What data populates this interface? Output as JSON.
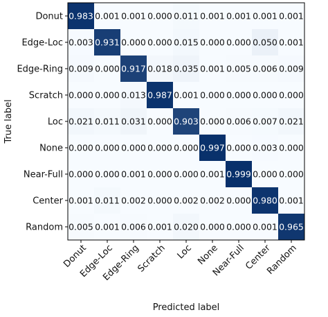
{
  "chart_data": {
    "type": "heatmap",
    "title": "",
    "xlabel": "Predicted label",
    "ylabel": "True label",
    "x_categories": [
      "Donut",
      "Edge-Loc",
      "Edge-Ring",
      "Scratch",
      "Loc",
      "None",
      "Near-Full",
      "Center",
      "Random"
    ],
    "y_categories": [
      "Donut",
      "Edge-Loc",
      "Edge-Ring",
      "Scratch",
      "Loc",
      "None",
      "Near-Full",
      "Center",
      "Random"
    ],
    "matrix": [
      [
        0.983,
        0.001,
        0.001,
        0.0,
        0.011,
        0.001,
        0.001,
        0.001,
        0.001
      ],
      [
        0.003,
        0.931,
        0.0,
        0.0,
        0.015,
        0.0,
        0.0,
        0.05,
        0.001
      ],
      [
        0.009,
        0.0,
        0.917,
        0.018,
        0.035,
        0.001,
        0.005,
        0.006,
        0.009
      ],
      [
        0.0,
        0.0,
        0.013,
        0.987,
        0.001,
        0.0,
        0.0,
        0.0,
        0.0
      ],
      [
        0.021,
        0.011,
        0.031,
        0.0,
        0.903,
        0.0,
        0.006,
        0.007,
        0.021
      ],
      [
        0.0,
        0.0,
        0.0,
        0.0,
        0.0,
        0.997,
        0.0,
        0.003,
        0.0
      ],
      [
        0.0,
        0.0,
        0.001,
        0.0,
        0.0,
        0.001,
        0.999,
        0.0,
        0.0
      ],
      [
        0.001,
        0.011,
        0.002,
        0.0,
        0.002,
        0.002,
        0.0,
        0.98,
        0.001
      ],
      [
        0.005,
        0.001,
        0.006,
        0.001,
        0.02,
        0.0,
        0.0,
        0.001,
        0.965
      ]
    ],
    "value_format": "3 decimals",
    "colormap": {
      "low": "#f7fbff",
      "high": "#08306b"
    },
    "value_range": [
      0,
      1
    ],
    "grid": false,
    "legend": "none"
  }
}
